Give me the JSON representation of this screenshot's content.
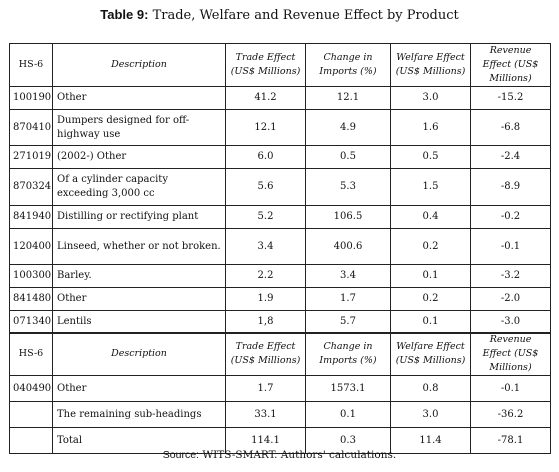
{
  "title": {
    "label": "Table 9:",
    "text": "Trade, Welfare and Revenue Effect by Product"
  },
  "table1": {
    "headers": {
      "hs": "HS-6",
      "description": "Description",
      "trade_effect": "Trade Effect (US$ Millions)",
      "change_imports": "Change in Imports (%)",
      "welfare_effect": "Welfare Effect (US$ Millions)",
      "revenue_effect": "Revenue Effect (US$ Millions)"
    },
    "rows": [
      {
        "hs": "100190",
        "description": "Other",
        "trade": "41.2",
        "change": "12.1",
        "welfare": "3.0",
        "revenue": "-15.2"
      },
      {
        "hs": "870410",
        "description": "Dumpers designed for off-highway use",
        "trade": "12.1",
        "change": "4.9",
        "welfare": "1.6",
        "revenue": "-6.8"
      },
      {
        "hs": "271019",
        "description": "(2002-) Other",
        "trade": "6.0",
        "change": "0.5",
        "welfare": "0.5",
        "revenue": "-2.4"
      },
      {
        "hs": "870324",
        "description": "Of a cylinder capacity exceeding 3,000 cc",
        "trade": "5.6",
        "change": "5.3",
        "welfare": "1.5",
        "revenue": "-8.9"
      },
      {
        "hs": "841940",
        "description": "Distilling or rectifying plant",
        "trade": "5.2",
        "change": "106.5",
        "welfare": "0.4",
        "revenue": "-0.2"
      },
      {
        "hs": "120400",
        "description": "Linseed, whether or not broken.",
        "trade": "3.4",
        "change": "400.6",
        "welfare": "0.2",
        "revenue": "-0.1"
      },
      {
        "hs": "100300",
        "description": "Barley.",
        "trade": "2.2",
        "change": "3.4",
        "welfare": "0.1",
        "revenue": "-3.2"
      },
      {
        "hs": "841480",
        "description": "Other",
        "trade": "1.9",
        "change": "1.7",
        "welfare": "0.2",
        "revenue": "-2.0"
      },
      {
        "hs": "071340",
        "description": "Lentils",
        "trade": "1,8",
        "change": "5.7",
        "welfare": "0.1",
        "revenue": "-3.0"
      }
    ]
  },
  "table2": {
    "headers": {
      "hs": "HS-6",
      "description": "Description",
      "trade_effect": "Trade Effect (US$ Millions)",
      "change_imports": "Change in Imports (%)",
      "welfare_effect": "Welfare Effect (US$ Millions)",
      "revenue_effect": "Revenue Effect (US$ Millions)"
    },
    "rows": [
      {
        "hs": "040490",
        "description": "Other",
        "trade": "1.7",
        "change": "1573.1",
        "welfare": "0.8",
        "revenue": "-0.1"
      },
      {
        "hs": "",
        "description": "The remaining sub-headings",
        "trade": "33.1",
        "change": "0.1",
        "welfare": "3.0",
        "revenue": "-36.2"
      },
      {
        "hs": "",
        "description": "Total",
        "trade": "114.1",
        "change": "0.3",
        "welfare": "11.4",
        "revenue": "-78.1"
      }
    ]
  },
  "source": {
    "label": "Source:",
    "text": "WITS-SMART. Authors' calculations."
  }
}
